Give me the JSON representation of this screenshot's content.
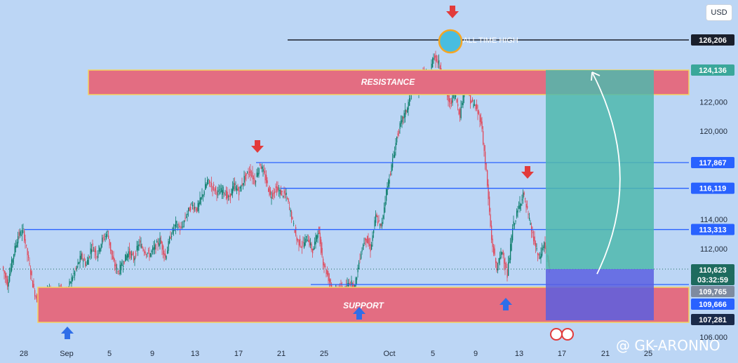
{
  "currency": "USD",
  "watermark": "@ GK-ARONNO",
  "chart_data": {
    "type": "candlestick",
    "x_ticks": [
      "28",
      "Sep",
      "5",
      "9",
      "13",
      "17",
      "21",
      "25",
      "Oct",
      "5",
      "9",
      "13",
      "17",
      "21",
      "25"
    ],
    "y_ticks": [
      "106,000",
      "112,000",
      "114,000",
      "120,000",
      "122,000"
    ],
    "price_tags": [
      {
        "label": "126,206",
        "value": 126206,
        "color": "#1a1f2b"
      },
      {
        "label": "124,136",
        "value": 124136,
        "color": "#3aa79a"
      },
      {
        "label": "117,867",
        "value": 117867,
        "color": "#2962ff"
      },
      {
        "label": "116,119",
        "value": 116119,
        "color": "#2962ff"
      },
      {
        "label": "113,313",
        "value": 113313,
        "color": "#2962ff"
      },
      {
        "label": "110,623",
        "value": 110623,
        "color": "#1e6b5f"
      },
      {
        "label": "03:32:59",
        "value": 110300,
        "color": "#1e6b5f"
      },
      {
        "label": "109,765",
        "value": 109765,
        "color": "#7e8ba0"
      },
      {
        "label": "109,666",
        "value": 109666,
        "color": "#2962ff"
      },
      {
        "label": "107,281",
        "value": 107281,
        "color": "#1a2a4a"
      }
    ],
    "zones": [
      {
        "label": "RESISTANCE",
        "low": 122600,
        "high": 124300
      },
      {
        "label": "SUPPORT",
        "low": 107000,
        "high": 109400
      }
    ],
    "ath_label": "ALL TIME HIGH",
    "levels": [
      117867,
      116119,
      113313,
      109765
    ],
    "bullish_color": "#0b7d6a",
    "bearish_color": "#e0485a",
    "close_path": [
      [
        0,
        110.8
      ],
      [
        1,
        109.6
      ],
      [
        2,
        111.4
      ],
      [
        3,
        112.9
      ],
      [
        4,
        113.2
      ],
      [
        5,
        111.2
      ],
      [
        6,
        109.2
      ],
      [
        7,
        108.1
      ],
      [
        8,
        108.6
      ],
      [
        9,
        109.1
      ],
      [
        10,
        108.4
      ],
      [
        11,
        109.4
      ],
      [
        12,
        108.7
      ],
      [
        13,
        109.8
      ],
      [
        14,
        110.6
      ],
      [
        15,
        111.5
      ],
      [
        16,
        110.9
      ],
      [
        17,
        112.2
      ],
      [
        18,
        111.6
      ],
      [
        19,
        112.6
      ],
      [
        20,
        113.1
      ],
      [
        21,
        111.2
      ],
      [
        22,
        110.4
      ],
      [
        23,
        111.1
      ],
      [
        24,
        111.8
      ],
      [
        25,
        111.3
      ],
      [
        26,
        112.4
      ],
      [
        27,
        111.9
      ],
      [
        28,
        111.6
      ],
      [
        29,
        112.1
      ],
      [
        30,
        112.6
      ],
      [
        31,
        111.4
      ],
      [
        32,
        112.9
      ],
      [
        33,
        113.7
      ],
      [
        34,
        113.3
      ],
      [
        35,
        114.3
      ],
      [
        36,
        115.0
      ],
      [
        37,
        114.7
      ],
      [
        38,
        115.6
      ],
      [
        39,
        116.6
      ],
      [
        40,
        116.2
      ],
      [
        41,
        115.8
      ],
      [
        42,
        116.0
      ],
      [
        43,
        115.4
      ],
      [
        44,
        116.3
      ],
      [
        45,
        115.9
      ],
      [
        46,
        116.8
      ],
      [
        47,
        117.3
      ],
      [
        48,
        116.6
      ],
      [
        49,
        117.8
      ],
      [
        50,
        116.8
      ],
      [
        51,
        115.6
      ],
      [
        52,
        116.1
      ],
      [
        53,
        115.8
      ],
      [
        54,
        115.6
      ],
      [
        55,
        114.2
      ],
      [
        56,
        112.6
      ],
      [
        57,
        112.2
      ],
      [
        58,
        112.8
      ],
      [
        59,
        111.8
      ],
      [
        60,
        113.3
      ],
      [
        61,
        111.1
      ],
      [
        62,
        110.0
      ],
      [
        63,
        108.9
      ],
      [
        64,
        109.5
      ],
      [
        65,
        109.1
      ],
      [
        66,
        109.8
      ],
      [
        67,
        109.4
      ],
      [
        68,
        111.5
      ],
      [
        69,
        112.8
      ],
      [
        70,
        112.0
      ],
      [
        71,
        114.2
      ],
      [
        72,
        113.4
      ],
      [
        73,
        115.9
      ],
      [
        74,
        117.6
      ],
      [
        75,
        119.6
      ],
      [
        76,
        120.8
      ],
      [
        77,
        121.6
      ],
      [
        78,
        123.2
      ],
      [
        79,
        122.8
      ],
      [
        80,
        124.1
      ],
      [
        81,
        123.4
      ],
      [
        82,
        125.2
      ],
      [
        83,
        124.6
      ],
      [
        84,
        123.2
      ],
      [
        85,
        121.8
      ],
      [
        86,
        122.6
      ],
      [
        87,
        121.1
      ],
      [
        88,
        123.4
      ],
      [
        89,
        122.1
      ],
      [
        90,
        121.6
      ],
      [
        91,
        120.7
      ],
      [
        92,
        117.2
      ],
      [
        93,
        112.6
      ],
      [
        94,
        110.6
      ],
      [
        95,
        111.9
      ],
      [
        96,
        110.2
      ],
      [
        97,
        113.4
      ],
      [
        98,
        114.6
      ],
      [
        99,
        115.8
      ],
      [
        100,
        114.2
      ],
      [
        101,
        112.6
      ],
      [
        102,
        111.3
      ],
      [
        103,
        112.4
      ],
      [
        104,
        110.6
      ]
    ]
  }
}
